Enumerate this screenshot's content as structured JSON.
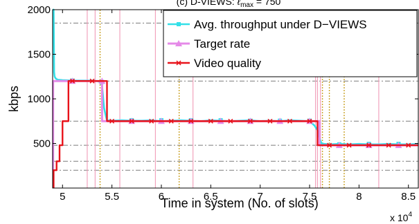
{
  "chart_data": {
    "type": "line",
    "title": "(c) D-VIEWS: $\\ell_{max}$ = 750",
    "xlabel": "Time in system (No. of slots)",
    "ylabel": "kbps",
    "x_multiplier": "x 10^4",
    "x_multiplier_base": "x 10",
    "x_multiplier_exp": "4",
    "xlim": [
      4.9,
      8.6
    ],
    "ylim": [
      0,
      2000
    ],
    "xticks": [
      5,
      5.5,
      6,
      6.5,
      7,
      7.5,
      8,
      8.5
    ],
    "xtick_labels": [
      "5",
      "5.5",
      "6",
      "6.5",
      "7",
      "7.5",
      "8",
      "8.5"
    ],
    "yticks": [
      500,
      1000,
      1500,
      2000
    ],
    "ytick_labels": [
      "500",
      "1000",
      "1500",
      "2000"
    ],
    "reference_lines_y": [
      200,
      300,
      480,
      750,
      1200,
      1850
    ],
    "event_lines_pink_x": [
      5.25,
      5.33,
      5.58,
      5.94,
      6.32,
      7.56,
      7.58,
      7.61,
      8.2
    ],
    "event_lines_dotted_x": [
      5.38,
      6.18,
      7.63,
      7.7,
      7.85
    ],
    "legend_position": "top-right",
    "grid": false,
    "series": [
      {
        "name": "Avg. throughput under D−VIEWS",
        "color": "#33e0e8",
        "marker": "square",
        "x": [
          4.9,
          4.91,
          4.915,
          4.92,
          4.93,
          4.95,
          5.0,
          5.1,
          5.2,
          5.3,
          5.35,
          5.38,
          5.4,
          5.42,
          5.44,
          5.45,
          5.5,
          5.6,
          5.7,
          5.8,
          5.9,
          6.0,
          6.1,
          6.2,
          6.3,
          6.4,
          6.5,
          6.6,
          6.7,
          6.8,
          6.9,
          7.0,
          7.1,
          7.2,
          7.3,
          7.4,
          7.5,
          7.55,
          7.58,
          7.6,
          7.62,
          7.65,
          7.7,
          7.8,
          7.9,
          8.0,
          8.1,
          8.2,
          8.3,
          8.4,
          8.5,
          8.6
        ],
        "y": [
          2000,
          2000,
          1300,
          1250,
          1230,
          1215,
          1210,
          1205,
          1205,
          1205,
          1200,
          1190,
          1150,
          900,
          800,
          760,
          755,
          760,
          755,
          755,
          760,
          750,
          755,
          760,
          755,
          750,
          760,
          755,
          750,
          755,
          760,
          750,
          755,
          750,
          760,
          755,
          750,
          700,
          650,
          560,
          500,
          495,
          490,
          495,
          490,
          495,
          490,
          490,
          495,
          490,
          490,
          495
        ]
      },
      {
        "name": "Target rate",
        "color": "#e58ae8",
        "marker": "triangle",
        "x": [
          4.9,
          4.905,
          4.905,
          5.4,
          5.4,
          7.6,
          7.6,
          8.6
        ],
        "y": [
          200,
          200,
          1200,
          1200,
          750,
          750,
          480,
          480
        ]
      },
      {
        "name": "Video quality",
        "color": "#e8121a",
        "marker": "x",
        "x": [
          4.91,
          4.91,
          4.94,
          4.94,
          4.97,
          4.97,
          5.0,
          5.0,
          5.06,
          5.06,
          5.45,
          5.45,
          7.58,
          7.58,
          8.6
        ],
        "y": [
          0,
          200,
          200,
          300,
          300,
          480,
          480,
          750,
          750,
          1200,
          1200,
          750,
          750,
          480,
          480
        ]
      }
    ]
  }
}
